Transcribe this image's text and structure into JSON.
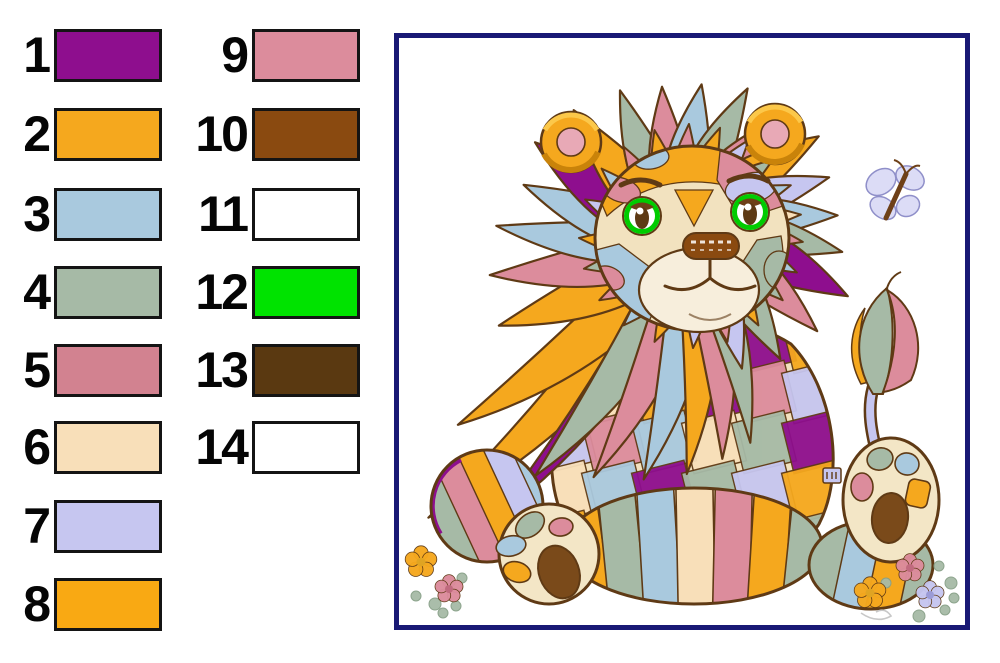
{
  "legend": {
    "items": [
      {
        "number": "1",
        "color": "#8E0E8E"
      },
      {
        "number": "2",
        "color": "#F5A81E"
      },
      {
        "number": "3",
        "color": "#A9C9DE"
      },
      {
        "number": "4",
        "color": "#A6BAA6"
      },
      {
        "number": "5",
        "color": "#D28290"
      },
      {
        "number": "6",
        "color": "#F8DFB9"
      },
      {
        "number": "7",
        "color": "#C6C6F0"
      },
      {
        "number": "8",
        "color": "#F9A913"
      },
      {
        "number": "9",
        "color": "#DC8C9C"
      },
      {
        "number": "10",
        "color": "#8A4A10"
      },
      {
        "number": "11",
        "color": "#FFFFFF"
      },
      {
        "number": "12",
        "color": "#00E300"
      },
      {
        "number": "13",
        "color": "#5A3911"
      },
      {
        "number": "14",
        "color": "#FFFFFF"
      }
    ]
  },
  "preview": {
    "frame_color": "#191975",
    "artwork_colors": {
      "outline": "#5F3A15",
      "face_base": "#F2E2BF",
      "muzzle": "#F7EEDC",
      "pad_cream": "#F3E6C6",
      "heel_brown": "#7A4A1A",
      "nose_brown": "#8A4A10",
      "eye_green": "#00CC00",
      "ear_gold_shade": "#C9830A",
      "inner_ear_pink": "#E8A9B6",
      "butterfly_wing": "#DCDCF6"
    }
  }
}
